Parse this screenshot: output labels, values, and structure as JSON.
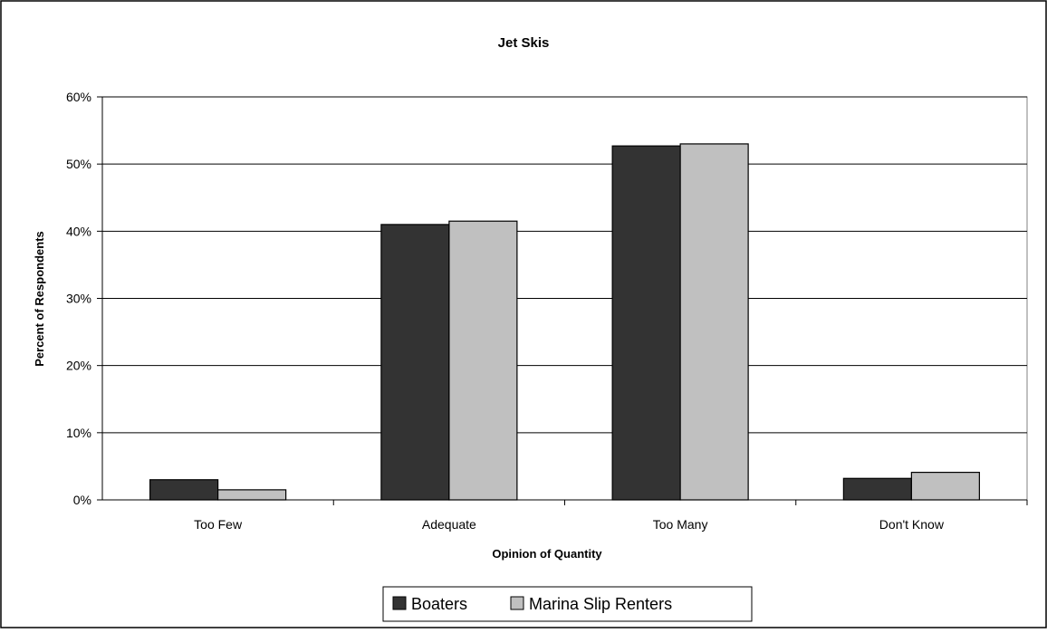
{
  "chart_data": {
    "type": "bar",
    "title": "Jet Skis",
    "xlabel": "Opinion of Quantity",
    "ylabel": "Percent of Respondents",
    "categories": [
      "Too Few",
      "Adequate",
      "Too Many",
      "Don't Know"
    ],
    "series": [
      {
        "name": "Boaters",
        "values": [
          3.0,
          41.0,
          52.7,
          3.2
        ],
        "color": "#333333"
      },
      {
        "name": "Marina Slip Renters",
        "values": [
          1.5,
          41.5,
          53.0,
          4.1
        ],
        "color": "#c0c0c0"
      }
    ],
    "ylim": [
      0,
      60
    ],
    "yticks": [
      "0%",
      "10%",
      "20%",
      "30%",
      "40%",
      "50%",
      "60%"
    ],
    "grid": true,
    "legend_position": "bottom-center"
  }
}
